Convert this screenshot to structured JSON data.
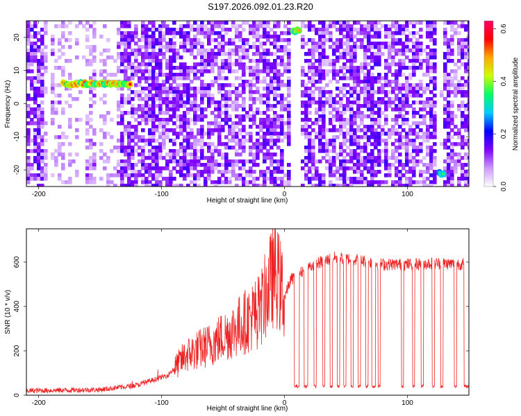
{
  "title": "S197.2026.092.01.23.R20",
  "chart_data": [
    {
      "type": "heatmap",
      "title": "",
      "xlabel": "Height of straight line (km)",
      "ylabel": "Frequency (Hz)",
      "xlim": [
        -210,
        150
      ],
      "ylim": [
        -25,
        25
      ],
      "x_ticks": [
        -200,
        -100,
        0,
        100
      ],
      "y_ticks": [
        -20,
        -10,
        0,
        10,
        20
      ],
      "colorbar": {
        "label": "Normalized spectral amplitude",
        "range": [
          0,
          0.63
        ],
        "ticks": [
          0,
          0.2,
          0.4,
          0.6
        ],
        "colors": [
          "#ffffff",
          "#cc99ff",
          "#8000ff",
          "#0000ff",
          "#00ccff",
          "#00ff66",
          "#ccff00",
          "#ffaa00",
          "#ff0000",
          "#ff0066"
        ]
      },
      "highlights": [
        {
          "x_range": [
            -180,
            -125
          ],
          "freq": 6,
          "amplitude": 0.45
        },
        {
          "x_range": [
            7,
            13
          ],
          "freq": 22,
          "amplitude": 0.35
        },
        {
          "x_range": [
            126,
            130
          ],
          "freq": -21,
          "amplitude": 0.25
        }
      ]
    },
    {
      "type": "line",
      "title": "",
      "xlabel": "Height of straight line (km)",
      "ylabel": "SNR (10 * v/v)",
      "xlim": [
        -210,
        150
      ],
      "ylim": [
        0,
        750
      ],
      "x_ticks": [
        -200,
        -100,
        0,
        100
      ],
      "y_ticks": [
        0,
        200,
        400,
        600
      ],
      "color": "#ee2222",
      "profile": [
        {
          "x": -210,
          "y": 20
        },
        {
          "x": -150,
          "y": 25
        },
        {
          "x": -120,
          "y": 45
        },
        {
          "x": -95,
          "y": 90
        },
        {
          "x": -80,
          "y": 180
        },
        {
          "x": -60,
          "y": 230
        },
        {
          "x": -40,
          "y": 300
        },
        {
          "x": -20,
          "y": 380
        },
        {
          "x": -8,
          "y": 560
        },
        {
          "x": 0,
          "y": 440
        },
        {
          "x": 5,
          "y": 520
        },
        {
          "x": 20,
          "y": 580
        },
        {
          "x": 40,
          "y": 620
        },
        {
          "x": 60,
          "y": 610
        },
        {
          "x": 80,
          "y": 590
        },
        {
          "x": 100,
          "y": 590
        },
        {
          "x": 120,
          "y": 595
        },
        {
          "x": 150,
          "y": 590
        }
      ],
      "dropouts_low_value": 40,
      "dropouts": [
        [
          8,
          12
        ],
        [
          16,
          19
        ],
        [
          24,
          26
        ],
        [
          31,
          33
        ],
        [
          37,
          39
        ],
        [
          43,
          45
        ],
        [
          48,
          50
        ],
        [
          54,
          56
        ],
        [
          60,
          62
        ],
        [
          66,
          68
        ],
        [
          71,
          74
        ],
        [
          76,
          78
        ],
        [
          95,
          97
        ],
        [
          104,
          106
        ],
        [
          111,
          113
        ],
        [
          120,
          122
        ],
        [
          127,
          129
        ],
        [
          138,
          140
        ],
        [
          146,
          150
        ]
      ]
    }
  ]
}
